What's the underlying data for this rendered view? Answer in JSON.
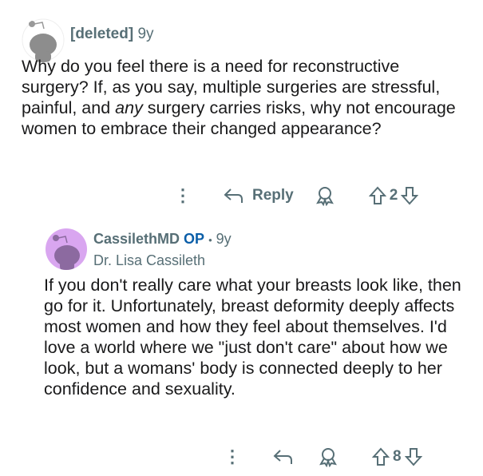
{
  "comment": {
    "author": "[deleted]",
    "age": "9y",
    "text_before": "Why do you feel there is a need for reconstructive surgery? If, as you say, multiple surgeries are stressful, painful, and ",
    "text_emph": "any",
    "text_after": " surgery carries risks, why not encourage women to embrace their changed appearance?",
    "reply_label": "Reply",
    "votes": "2"
  },
  "reply": {
    "author": "CassilethMD",
    "op_badge": "OP",
    "separator": "•",
    "age": "9y",
    "flair": "Dr. Lisa Cassileth",
    "text": "If you don't really care what your breasts look like, then go for it. Unfortunately, breast deformity deeply affects most women and how they feel about themselves. I'd love a world where we \"just don't care\" about how we look, but a womans' body is connected deeply to her confidence and sexuality.",
    "votes": "8",
    "avatar_color": "#d9a6f0"
  },
  "colors": {
    "meta": "#576f76",
    "op": "#0b5ea8"
  }
}
